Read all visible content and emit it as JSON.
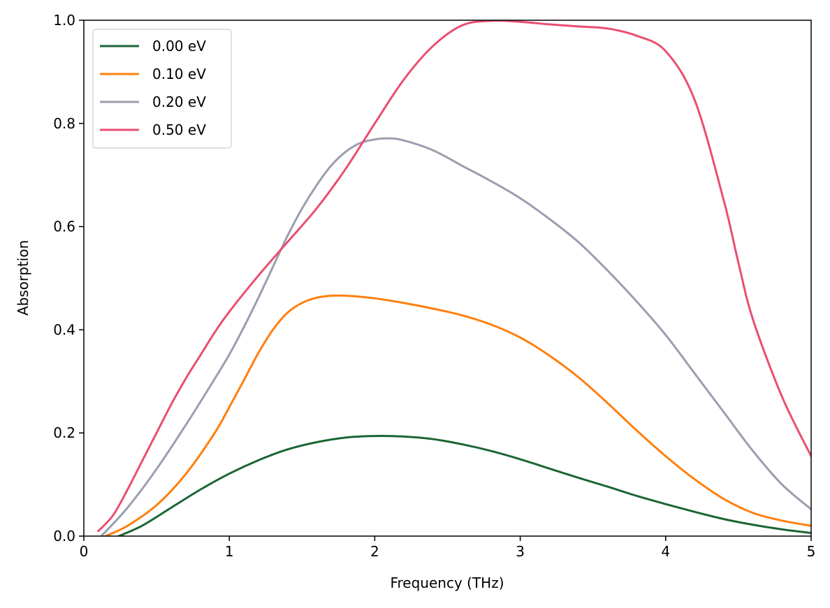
{
  "chart_data": {
    "type": "line",
    "title": "",
    "xlabel": "Frequency (THz)",
    "ylabel": "Absorption",
    "xlim": [
      0,
      5
    ],
    "ylim": [
      0,
      1.0
    ],
    "xticks": [
      0,
      1,
      2,
      3,
      4,
      5
    ],
    "xtick_labels": [
      "0",
      "1",
      "2",
      "3",
      "4",
      "5"
    ],
    "yticks": [
      0.0,
      0.2,
      0.4,
      0.6,
      0.8,
      1.0
    ],
    "ytick_labels": [
      "0.0",
      "0.2",
      "0.4",
      "0.6",
      "0.8",
      "1.0"
    ],
    "grid": false,
    "legend_position": "top-left",
    "series": [
      {
        "name": "0.00 eV",
        "color": "#1b6535",
        "x": [
          0.24,
          0.4,
          0.6,
          0.8,
          1.0,
          1.2,
          1.4,
          1.6,
          1.8,
          2.0,
          2.2,
          2.4,
          2.6,
          2.8,
          3.0,
          3.2,
          3.4,
          3.6,
          3.8,
          4.0,
          4.2,
          4.4,
          4.6,
          4.8,
          5.0
        ],
        "y": [
          0.0,
          0.02,
          0.055,
          0.09,
          0.121,
          0.147,
          0.168,
          0.182,
          0.191,
          0.194,
          0.193,
          0.188,
          0.178,
          0.165,
          0.149,
          0.131,
          0.113,
          0.096,
          0.078,
          0.062,
          0.047,
          0.033,
          0.022,
          0.013,
          0.006
        ]
      },
      {
        "name": "0.10 eV",
        "color": "#ff7f0e",
        "x": [
          0.15,
          0.3,
          0.5,
          0.7,
          0.9,
          1.0,
          1.1,
          1.2,
          1.3,
          1.4,
          1.5,
          1.6,
          1.7,
          1.8,
          1.9,
          2.0,
          2.2,
          2.4,
          2.6,
          2.8,
          3.0,
          3.2,
          3.4,
          3.6,
          3.8,
          4.0,
          4.2,
          4.4,
          4.6,
          4.8,
          5.0
        ],
        "y": [
          0.0,
          0.02,
          0.06,
          0.12,
          0.2,
          0.25,
          0.302,
          0.355,
          0.4,
          0.433,
          0.452,
          0.462,
          0.466,
          0.466,
          0.464,
          0.461,
          0.452,
          0.441,
          0.428,
          0.41,
          0.385,
          0.35,
          0.308,
          0.258,
          0.205,
          0.155,
          0.11,
          0.072,
          0.045,
          0.03,
          0.02
        ]
      },
      {
        "name": "0.20 eV",
        "color": "#9b9eaf",
        "x": [
          0.12,
          0.3,
          0.5,
          0.7,
          0.9,
          1.0,
          1.1,
          1.2,
          1.3,
          1.4,
          1.5,
          1.6,
          1.7,
          1.8,
          1.9,
          2.0,
          2.1,
          2.2,
          2.4,
          2.6,
          2.8,
          3.0,
          3.2,
          3.4,
          3.6,
          3.8,
          4.0,
          4.2,
          4.4,
          4.6,
          4.8,
          5.0
        ],
        "y": [
          0.0,
          0.055,
          0.13,
          0.215,
          0.305,
          0.352,
          0.405,
          0.462,
          0.522,
          0.582,
          0.635,
          0.68,
          0.718,
          0.745,
          0.762,
          0.769,
          0.771,
          0.767,
          0.748,
          0.718,
          0.688,
          0.655,
          0.615,
          0.57,
          0.515,
          0.455,
          0.39,
          0.315,
          0.24,
          0.165,
          0.1,
          0.052
        ]
      },
      {
        "name": "0.50 eV",
        "color": "#ea4e70",
        "x": [
          0.1,
          0.2,
          0.3,
          0.4,
          0.5,
          0.6,
          0.7,
          0.8,
          0.9,
          1.0,
          1.2,
          1.4,
          1.6,
          1.8,
          2.0,
          2.2,
          2.4,
          2.6,
          2.8,
          3.0,
          3.2,
          3.4,
          3.6,
          3.8,
          4.0,
          4.2,
          4.4,
          4.5,
          4.6,
          4.8,
          5.0
        ],
        "y": [
          0.01,
          0.04,
          0.09,
          0.145,
          0.2,
          0.255,
          0.305,
          0.35,
          0.395,
          0.435,
          0.505,
          0.57,
          0.635,
          0.712,
          0.8,
          0.885,
          0.95,
          0.99,
          0.999,
          0.997,
          0.992,
          0.988,
          0.984,
          0.97,
          0.94,
          0.845,
          0.65,
          0.53,
          0.42,
          0.27,
          0.155
        ]
      }
    ]
  }
}
